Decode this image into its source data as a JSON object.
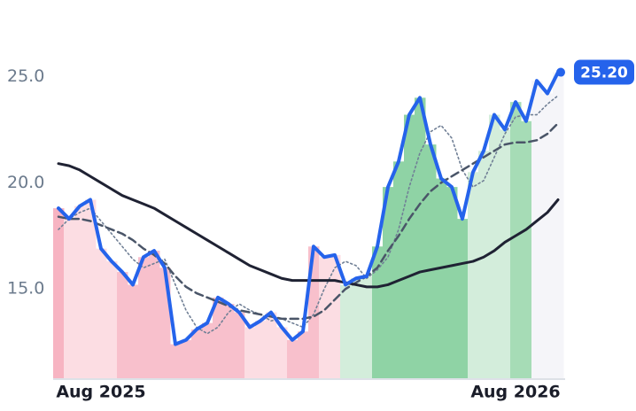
{
  "chart_data": {
    "type": "line",
    "categories": [
      null,
      null,
      null,
      null,
      "Aug 2025",
      null,
      null,
      null,
      null,
      null,
      null,
      null,
      null,
      null,
      null,
      null,
      null,
      null,
      null,
      null,
      null,
      null,
      null,
      null,
      null,
      null,
      null,
      null,
      null,
      null,
      null,
      null,
      null,
      null,
      null,
      null,
      null,
      null,
      null,
      null,
      null,
      null,
      null,
      "Aug 2026",
      null,
      null,
      null,
      null
    ],
    "ylim": [
      10.8,
      28.6
    ],
    "yticks": [
      {
        "value": 15,
        "label": "15.0"
      },
      {
        "value": 20,
        "label": "20.0"
      },
      {
        "value": 25,
        "label": "25.0"
      }
    ],
    "shading": [
      {
        "color": "#f7b4c2",
        "count": 1
      },
      {
        "color": "#fcdde3",
        "count": 5
      },
      {
        "color": "#f8c0cc",
        "count": 12
      },
      {
        "color": "#fcdde3",
        "count": 4
      },
      {
        "color": "#f8c0cc",
        "count": 3
      },
      {
        "color": "#fcdde3",
        "count": 2
      },
      {
        "color": "#d3eddb",
        "count": 3
      },
      {
        "color": "#8fd3a5",
        "count": 9
      },
      {
        "color": "#d3eddb",
        "count": 4
      },
      {
        "color": "#a6dcb6",
        "count": 2
      },
      {
        "color": "#f5f5f9",
        "count": 3
      }
    ],
    "series": [
      {
        "color": "#2563eb",
        "line_style": "solid",
        "values": [
          18.8,
          18.3,
          18.9,
          19.2,
          16.9,
          16.3,
          15.8,
          15.2,
          16.5,
          16.8,
          16.0,
          12.4,
          12.6,
          13.1,
          13.4,
          14.6,
          14.3,
          13.9,
          13.2,
          13.5,
          13.9,
          13.2,
          12.6,
          13.0,
          17.0,
          16.5,
          16.6,
          15.2,
          15.5,
          15.6,
          17.0,
          19.8,
          21.0,
          23.2,
          24.0,
          21.8,
          20.2,
          19.8,
          18.3,
          20.5,
          21.5,
          23.2,
          22.5,
          23.8,
          22.9,
          24.8,
          24.2,
          25.2
        ],
        "value_labels": [
          null,
          null,
          null,
          null,
          null,
          null,
          null,
          null,
          null,
          null,
          null,
          null,
          null,
          null,
          null,
          null,
          null,
          null,
          null,
          null,
          null,
          null,
          null,
          null,
          null,
          null,
          null,
          null,
          null,
          null,
          null,
          null,
          null,
          null,
          null,
          null,
          null,
          null,
          null,
          null,
          null,
          null,
          null,
          null,
          null,
          null,
          null,
          "25.20"
        ]
      },
      {
        "color": "#1f2233",
        "line_style": "solid",
        "values": [
          20.9,
          20.8,
          20.6,
          20.3,
          20.0,
          19.7,
          19.4,
          19.2,
          19.0,
          18.8,
          18.5,
          18.2,
          17.9,
          17.6,
          17.3,
          17.0,
          16.7,
          16.4,
          16.1,
          15.9,
          15.7,
          15.5,
          15.4,
          15.4,
          15.4,
          15.4,
          15.4,
          15.3,
          15.2,
          15.1,
          15.1,
          15.2,
          15.4,
          15.6,
          15.8,
          15.9,
          16.0,
          16.1,
          16.2,
          16.3,
          16.5,
          16.8,
          17.2,
          17.5,
          17.8,
          18.2,
          18.6,
          19.2
        ]
      },
      {
        "color": "#4a5568",
        "line_style": "dashed",
        "values": [
          18.4,
          18.3,
          18.3,
          18.2,
          18.0,
          17.8,
          17.6,
          17.3,
          16.9,
          16.6,
          16.2,
          15.6,
          15.1,
          14.8,
          14.6,
          14.4,
          14.2,
          14.0,
          13.9,
          13.8,
          13.7,
          13.6,
          13.6,
          13.6,
          13.7,
          14.0,
          14.5,
          15.0,
          15.3,
          15.6,
          16.0,
          16.8,
          17.5,
          18.3,
          19.0,
          19.6,
          20.0,
          20.3,
          20.6,
          20.9,
          21.2,
          21.5,
          21.8,
          21.9,
          21.9,
          22.0,
          22.3,
          22.8
        ]
      },
      {
        "color": "#718096",
        "line_style": "dotted",
        "values": [
          17.8,
          18.3,
          18.6,
          18.8,
          18.2,
          17.6,
          17.0,
          16.4,
          16.0,
          16.2,
          16.4,
          15.2,
          14.0,
          13.2,
          12.9,
          13.2,
          13.9,
          14.3,
          14.0,
          13.8,
          13.5,
          13.6,
          13.4,
          13.2,
          13.8,
          15.0,
          16.0,
          16.3,
          16.1,
          15.5,
          15.9,
          16.5,
          17.8,
          19.8,
          21.4,
          22.4,
          22.7,
          22.1,
          20.6,
          19.8,
          20.1,
          21.2,
          22.3,
          23.1,
          23.2,
          23.2,
          23.7,
          24.1
        ]
      }
    ]
  }
}
